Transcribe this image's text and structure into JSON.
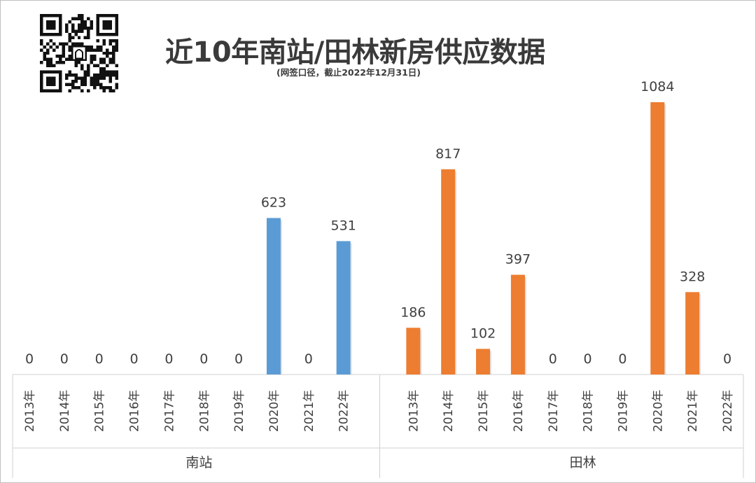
{
  "header": {
    "title": "近10年南站/田林新房供应数据",
    "subtitle": "(网签口径，截止2022年12月31日)"
  },
  "chart_data": {
    "type": "bar",
    "title": "近10年南站/田林新房供应数据",
    "subtitle": "(网签口径，截止2022年12月31日)",
    "groups": [
      {
        "name": "南站",
        "color": "#5b9bd5",
        "categories": [
          "2013年",
          "2014年",
          "2015年",
          "2016年",
          "2017年",
          "2018年",
          "2019年",
          "2020年",
          "2021年",
          "2022年"
        ],
        "values": [
          0,
          0,
          0,
          0,
          0,
          0,
          0,
          623,
          0,
          531
        ]
      },
      {
        "name": "田林",
        "color": "#ed7d31",
        "categories": [
          "2013年",
          "2014年",
          "2015年",
          "2016年",
          "2017年",
          "2018年",
          "2019年",
          "2020年",
          "2021年",
          "2022年"
        ],
        "values": [
          186,
          817,
          102,
          397,
          0,
          0,
          0,
          1084,
          328,
          0
        ]
      }
    ],
    "ylim": [
      0,
      1084
    ],
    "grid": false,
    "legend": "none"
  }
}
